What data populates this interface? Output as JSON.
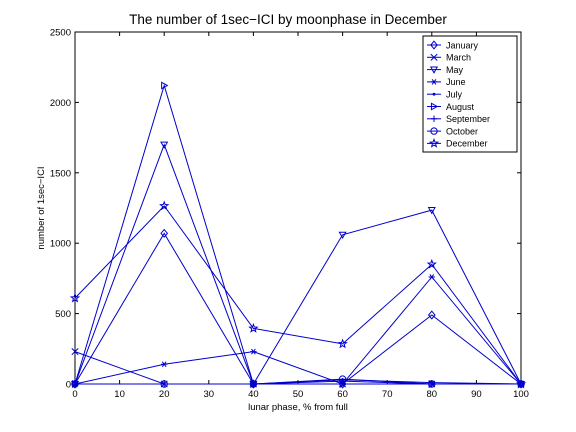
{
  "chart_data": {
    "type": "line",
    "title": "The number of 1sec−ICI by moonphase in December",
    "xlabel": "lunar phase, % from full",
    "ylabel": "number of 1sec−ICI",
    "xlim": [
      0,
      100
    ],
    "ylim": [
      0,
      2500
    ],
    "x_ticks": [
      0,
      10,
      20,
      30,
      40,
      50,
      60,
      70,
      80,
      90,
      100
    ],
    "y_ticks": [
      0,
      500,
      1000,
      1500,
      2000,
      2500
    ],
    "x": [
      0,
      20,
      40,
      60,
      80,
      100
    ],
    "line_color": "#0000cc",
    "grid": false,
    "legend_position": "top-right",
    "series": [
      {
        "name": "January",
        "marker": "diamond",
        "values": [
          0,
          1070,
          0,
          0,
          490,
          0
        ]
      },
      {
        "name": "March",
        "marker": "x",
        "values": [
          230,
          0,
          0,
          0,
          0,
          0
        ]
      },
      {
        "name": "May",
        "marker": "triangle-down",
        "values": [
          0,
          1700,
          0,
          1060,
          1235,
          0
        ]
      },
      {
        "name": "June",
        "marker": "asterisk",
        "values": [
          0,
          140,
          230,
          0,
          760,
          0
        ]
      },
      {
        "name": "July",
        "marker": "point",
        "values": [
          0,
          0,
          0,
          30,
          10,
          0
        ]
      },
      {
        "name": "August",
        "marker": "triangle-right",
        "values": [
          0,
          2120,
          0,
          0,
          0,
          0
        ]
      },
      {
        "name": "September",
        "marker": "plus",
        "values": [
          0,
          0,
          0,
          20,
          0,
          0
        ]
      },
      {
        "name": "October",
        "marker": "circle",
        "values": [
          0,
          0,
          0,
          35,
          0,
          0
        ]
      },
      {
        "name": "December",
        "marker": "star",
        "values": [
          610,
          1265,
          395,
          285,
          850,
          0
        ]
      }
    ]
  }
}
